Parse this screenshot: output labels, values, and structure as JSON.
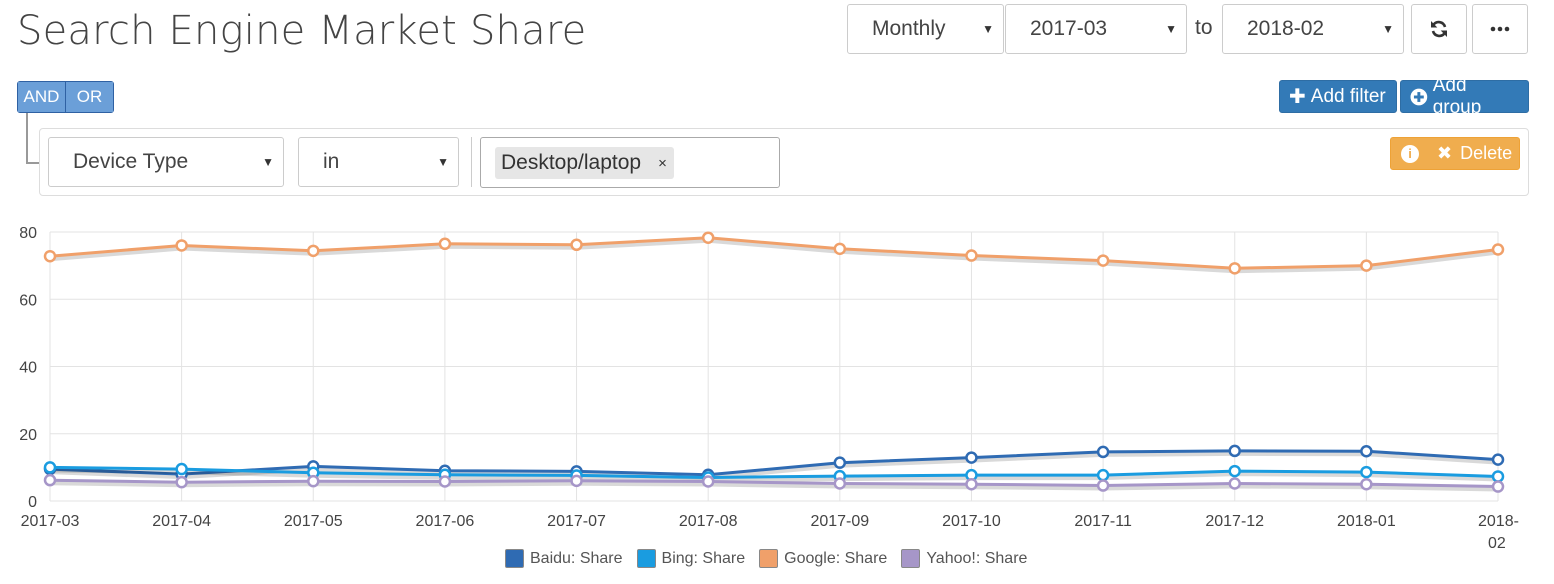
{
  "header": {
    "title": "Search Engine Market Share",
    "period": "Monthly",
    "from": "2017-03",
    "to_label": "to",
    "to": "2018-02",
    "refresh_icon": "refresh-icon",
    "more_icon": "ellipsis-icon"
  },
  "filters": {
    "and_label": "AND",
    "or_label": "OR",
    "add_filter_label": "Add filter",
    "add_group_label": "Add group",
    "rule": {
      "field": "Device Type",
      "operator": "in",
      "value_chip": "Desktop/laptop",
      "remove_chip_symbol": "×",
      "delete_label": "Delete"
    }
  },
  "colors": {
    "baidu": "#2f6bb3",
    "bing": "#1a9ce0",
    "google": "#f0a06a",
    "yahoo": "#a696c8",
    "grid": "#e3e3e3"
  },
  "chart_data": {
    "type": "line",
    "x": [
      "2017-03",
      "2017-04",
      "2017-05",
      "2017-06",
      "2017-07",
      "2017-08",
      "2017-09",
      "2017-10",
      "2017-11",
      "2017-12",
      "2018-01",
      "2018-02"
    ],
    "ylim": [
      0,
      80
    ],
    "yticks": [
      0,
      20,
      40,
      60,
      80
    ],
    "grid": true,
    "legend_position": "bottom",
    "series": [
      {
        "name": "Baidu: Share",
        "color_key": "baidu",
        "values": [
          9.5,
          8,
          10.3,
          9,
          8.8,
          7.8,
          11.4,
          12.9,
          14.6,
          14.9,
          14.8,
          12.3
        ]
      },
      {
        "name": "Bing: Share",
        "color_key": "bing",
        "values": [
          10,
          9.5,
          8.4,
          7.8,
          7.6,
          7,
          7.4,
          7.7,
          7.7,
          8.9,
          8.6,
          7.3
        ]
      },
      {
        "name": "Google: Share",
        "color_key": "google",
        "values": [
          72.8,
          76,
          74.4,
          76.5,
          76.2,
          78.3,
          75,
          73,
          71.5,
          69.2,
          70,
          74.8
        ]
      },
      {
        "name": "Yahoo!: Share",
        "color_key": "yahoo",
        "values": [
          6.2,
          5.6,
          5.9,
          5.8,
          6,
          5.8,
          5.2,
          5,
          4.6,
          5.2,
          5,
          4.3
        ]
      }
    ]
  }
}
